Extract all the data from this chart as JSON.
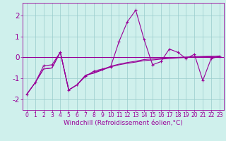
{
  "xlabel": "Windchill (Refroidissement éolien,°C)",
  "x": [
    0,
    1,
    2,
    3,
    4,
    5,
    6,
    7,
    8,
    9,
    10,
    11,
    12,
    13,
    14,
    15,
    16,
    17,
    18,
    19,
    20,
    21,
    22,
    23
  ],
  "line1": [
    -1.75,
    -1.2,
    -0.4,
    -0.35,
    0.25,
    -1.55,
    -1.3,
    -0.9,
    -0.65,
    -0.55,
    -0.45,
    0.75,
    1.7,
    2.25,
    0.85,
    -0.35,
    -0.2,
    0.4,
    0.25,
    -0.05,
    0.15,
    -1.1,
    -0.05,
    0.05
  ],
  "line2": [
    -1.75,
    -1.2,
    -0.55,
    -0.5,
    0.25,
    -1.55,
    -1.3,
    -0.85,
    -0.75,
    -0.6,
    -0.45,
    -0.35,
    -0.28,
    -0.22,
    -0.15,
    -0.12,
    -0.08,
    -0.05,
    -0.02,
    0.0,
    0.02,
    0.03,
    0.04,
    0.05
  ],
  "line3": [
    -1.75,
    -1.2,
    -0.55,
    -0.5,
    0.25,
    -1.55,
    -1.3,
    -0.85,
    -0.72,
    -0.58,
    -0.42,
    -0.32,
    -0.24,
    -0.18,
    -0.1,
    -0.07,
    -0.04,
    -0.02,
    0.0,
    0.02,
    0.04,
    0.05,
    0.06,
    0.07
  ],
  "bg_color": "#cff0ec",
  "line_color": "#990099",
  "grid_color": "#99cccc",
  "ylim": [
    -2.5,
    2.6
  ],
  "yticks": [
    -2,
    -1,
    0,
    1,
    2
  ],
  "xtick_fontsize": 5.5,
  "ytick_fontsize": 7.5,
  "xlabel_fontsize": 6.5
}
